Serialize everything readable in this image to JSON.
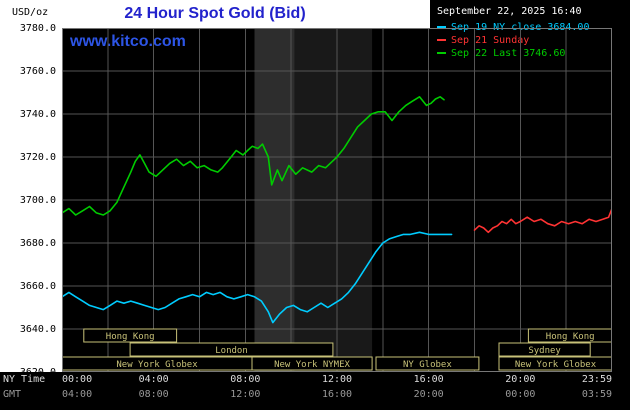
{
  "header": {
    "units_label": "USD/oz",
    "title": "24 Hour Spot Gold (Bid)",
    "watermark": "www.kitco.com",
    "datetime": "September 22, 2025 16:40"
  },
  "colors": {
    "title": "#2222cc",
    "watermark": "#2d55e6",
    "grid": "#555555",
    "plot_border": "#777777",
    "session": "#c8c279",
    "axis_ny": "#dddddd",
    "axis_gmt": "#999999"
  },
  "legend": {
    "items": [
      {
        "label": "Sep 19 NY close 3684.00",
        "color": "#00ccff"
      },
      {
        "label": "Sep 21 Sunday",
        "color": "#ff3333"
      },
      {
        "label": "Sep 22 Last 3746.60",
        "color": "#00cc00"
      }
    ]
  },
  "axes": {
    "ny_label": "NY Time",
    "gmt_label": "GMT",
    "y_ticks": [
      "3780.0",
      "3760.0",
      "3740.0",
      "3720.0",
      "3700.0",
      "3680.0",
      "3660.0",
      "3640.0",
      "3620.0"
    ],
    "ticks": [
      {
        "h": 0,
        "ny": "00:00",
        "gmt": "04:00"
      },
      {
        "h": 4,
        "ny": "04:00",
        "gmt": "08:00"
      },
      {
        "h": 8,
        "ny": "08:00",
        "gmt": "12:00"
      },
      {
        "h": 12,
        "ny": "12:00",
        "gmt": "16:00"
      },
      {
        "h": 16,
        "ny": "16:00",
        "gmt": "20:00"
      },
      {
        "h": 20,
        "ny": "20:00",
        "gmt": "00:00"
      },
      {
        "h": 24,
        "ny": "23:59",
        "gmt": "03:59"
      }
    ]
  },
  "sessions": {
    "boxes": [
      {
        "row": 0,
        "label": "Hong Kong",
        "start": 0.95,
        "end": 5.0
      },
      {
        "row": 0,
        "label": "Hong Kong",
        "start": 20.35,
        "end": 24.0
      },
      {
        "row": 1,
        "label": "London",
        "start": 2.97,
        "end": 11.82
      },
      {
        "row": 1,
        "label": "Sydney",
        "start": 19.07,
        "end": 23.05
      },
      {
        "row": 2,
        "label": "New York Globex",
        "start": 0.0,
        "end": 8.29
      },
      {
        "row": 2,
        "label": "New York NYMEX",
        "start": 8.29,
        "end": 13.53
      },
      {
        "row": 2,
        "label": "NY Globex",
        "start": 13.7,
        "end": 18.19
      },
      {
        "row": 2,
        "label": "New York Globex",
        "start": 19.07,
        "end": 24.0
      }
    ]
  },
  "chart_data": {
    "type": "line",
    "title": "24 Hour Spot Gold (Bid)",
    "ylabel": "USD/oz",
    "ylim": [
      3620,
      3780
    ],
    "xlim_hours": [
      0,
      24
    ],
    "y_step": 20,
    "x_grid_step_hours": 2,
    "grid": true,
    "legend_position": "top-right",
    "shaded_bands": [
      {
        "start": 8.4,
        "end": 10.15,
        "color": "#2d2d2d"
      },
      {
        "start": 10.15,
        "end": 13.53,
        "color": "#191919"
      }
    ],
    "series": [
      {
        "name": "Sep 19 NY close",
        "color": "#00ccff",
        "last": 3684.0,
        "points": [
          [
            0,
            3655
          ],
          [
            0.3,
            3657
          ],
          [
            0.6,
            3655
          ],
          [
            0.9,
            3653
          ],
          [
            1.2,
            3651
          ],
          [
            1.5,
            3650
          ],
          [
            1.8,
            3649
          ],
          [
            2.1,
            3651
          ],
          [
            2.4,
            3653
          ],
          [
            2.7,
            3652
          ],
          [
            3,
            3653
          ],
          [
            3.3,
            3652
          ],
          [
            3.6,
            3651
          ],
          [
            3.9,
            3650
          ],
          [
            4.2,
            3649
          ],
          [
            4.5,
            3650
          ],
          [
            4.8,
            3652
          ],
          [
            5.1,
            3654
          ],
          [
            5.4,
            3655
          ],
          [
            5.7,
            3656
          ],
          [
            6,
            3655
          ],
          [
            6.3,
            3657
          ],
          [
            6.6,
            3656
          ],
          [
            6.9,
            3657
          ],
          [
            7.2,
            3655
          ],
          [
            7.5,
            3654
          ],
          [
            7.8,
            3655
          ],
          [
            8.1,
            3656
          ],
          [
            8.4,
            3655
          ],
          [
            8.7,
            3653
          ],
          [
            9,
            3648
          ],
          [
            9.2,
            3643
          ],
          [
            9.5,
            3647
          ],
          [
            9.8,
            3650
          ],
          [
            10.1,
            3651
          ],
          [
            10.4,
            3649
          ],
          [
            10.7,
            3648
          ],
          [
            11,
            3650
          ],
          [
            11.3,
            3652
          ],
          [
            11.6,
            3650
          ],
          [
            11.9,
            3652
          ],
          [
            12.2,
            3654
          ],
          [
            12.5,
            3657
          ],
          [
            12.8,
            3661
          ],
          [
            13.1,
            3666
          ],
          [
            13.4,
            3671
          ],
          [
            13.7,
            3676
          ],
          [
            14,
            3680
          ],
          [
            14.3,
            3682
          ],
          [
            14.6,
            3683
          ],
          [
            14.9,
            3684
          ],
          [
            15.2,
            3684
          ],
          [
            15.6,
            3685
          ],
          [
            16,
            3684
          ],
          [
            16.5,
            3684
          ],
          [
            17,
            3684
          ]
        ]
      },
      {
        "name": "Sep 21 Sunday",
        "color": "#ff3333",
        "last": null,
        "points": [
          [
            18,
            3686
          ],
          [
            18.2,
            3688
          ],
          [
            18.4,
            3687
          ],
          [
            18.6,
            3685
          ],
          [
            18.8,
            3687
          ],
          [
            19,
            3688
          ],
          [
            19.2,
            3690
          ],
          [
            19.4,
            3689
          ],
          [
            19.6,
            3691
          ],
          [
            19.8,
            3689
          ],
          [
            20,
            3690
          ],
          [
            20.3,
            3692
          ],
          [
            20.6,
            3690
          ],
          [
            20.9,
            3691
          ],
          [
            21.2,
            3689
          ],
          [
            21.5,
            3688
          ],
          [
            21.8,
            3690
          ],
          [
            22.1,
            3689
          ],
          [
            22.4,
            3690
          ],
          [
            22.7,
            3689
          ],
          [
            23,
            3691
          ],
          [
            23.3,
            3690
          ],
          [
            23.6,
            3691
          ],
          [
            23.85,
            3692
          ],
          [
            24,
            3696
          ]
        ]
      },
      {
        "name": "Sep 22 Last",
        "color": "#00cc00",
        "last": 3746.6,
        "points": [
          [
            0,
            3694
          ],
          [
            0.3,
            3696
          ],
          [
            0.6,
            3693
          ],
          [
            0.9,
            3695
          ],
          [
            1.2,
            3697
          ],
          [
            1.5,
            3694
          ],
          [
            1.8,
            3693
          ],
          [
            2.1,
            3695
          ],
          [
            2.4,
            3699
          ],
          [
            2.7,
            3706
          ],
          [
            3,
            3713
          ],
          [
            3.2,
            3718
          ],
          [
            3.4,
            3721
          ],
          [
            3.6,
            3717
          ],
          [
            3.8,
            3713
          ],
          [
            4.1,
            3711
          ],
          [
            4.4,
            3714
          ],
          [
            4.7,
            3717
          ],
          [
            5,
            3719
          ],
          [
            5.3,
            3716
          ],
          [
            5.6,
            3718
          ],
          [
            5.9,
            3715
          ],
          [
            6.2,
            3716
          ],
          [
            6.5,
            3714
          ],
          [
            6.8,
            3713
          ],
          [
            7,
            3715
          ],
          [
            7.3,
            3719
          ],
          [
            7.6,
            3723
          ],
          [
            7.9,
            3721
          ],
          [
            8.1,
            3723
          ],
          [
            8.3,
            3725
          ],
          [
            8.55,
            3724
          ],
          [
            8.75,
            3726
          ],
          [
            9,
            3720
          ],
          [
            9.15,
            3707
          ],
          [
            9.4,
            3714
          ],
          [
            9.6,
            3709
          ],
          [
            9.9,
            3716
          ],
          [
            10.2,
            3712
          ],
          [
            10.5,
            3715
          ],
          [
            10.9,
            3713
          ],
          [
            11.2,
            3716
          ],
          [
            11.5,
            3715
          ],
          [
            11.8,
            3718
          ],
          [
            12,
            3720
          ],
          [
            12.3,
            3724
          ],
          [
            12.6,
            3729
          ],
          [
            12.9,
            3734
          ],
          [
            13.2,
            3737
          ],
          [
            13.5,
            3740
          ],
          [
            13.8,
            3741
          ],
          [
            14.1,
            3741
          ],
          [
            14.4,
            3737
          ],
          [
            14.7,
            3741
          ],
          [
            15,
            3744
          ],
          [
            15.3,
            3746
          ],
          [
            15.6,
            3748
          ],
          [
            15.9,
            3744
          ],
          [
            16.1,
            3745
          ],
          [
            16.3,
            3747
          ],
          [
            16.5,
            3748
          ],
          [
            16.67,
            3746.6
          ]
        ]
      }
    ]
  }
}
